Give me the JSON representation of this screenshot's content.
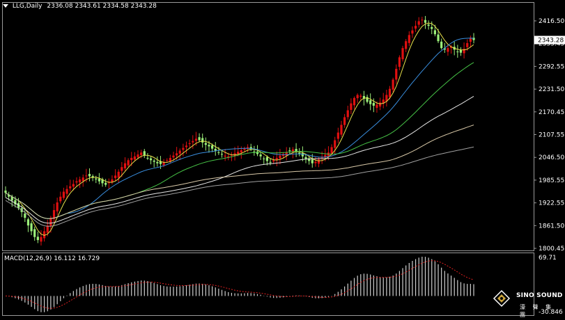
{
  "header": {
    "symbol_tf": "LLG,Daily",
    "ohlc": "2336.08 2343.61 2334.58 2343.28"
  },
  "price_axis": {
    "ticks": [
      "2416.50",
      "2355.45",
      "2292.55",
      "2231.50",
      "2170.45",
      "2107.55",
      "2046.50",
      "1985.55",
      "1922.55",
      "1861.50",
      "1800.45"
    ],
    "current_price": "2343.28"
  },
  "macd": {
    "label": "MACD(12,26,9) 16.112 16.729",
    "axis_top": "69.71",
    "axis_bottom": "-30.846"
  },
  "logo": {
    "line1": "SINO SOUND",
    "line2": "濠 聲 集 團"
  },
  "colors": {
    "background": "#000000",
    "bull": "#e01010",
    "bear": "#9cf07a",
    "ma_yellow": "#e8e04a",
    "ma_blue": "#3a8fe0",
    "ma_green": "#46c246",
    "ma_white": "#e6e6e6",
    "ma_tan": "#d9c9a8",
    "ma_grey": "#a0a0a0",
    "macd_hist": "#d0d0d0",
    "macd_signal": "#e02020"
  },
  "chart_data": {
    "type": "candlestick",
    "ylim": [
      1795,
      2440
    ],
    "closes": [
      1945,
      1935,
      1925,
      1915,
      1905,
      1895,
      1880,
      1860,
      1845,
      1830,
      1822,
      1830,
      1845,
      1860,
      1880,
      1900,
      1920,
      1935,
      1948,
      1955,
      1962,
      1968,
      1975,
      1980,
      1985,
      1990,
      1988,
      1984,
      1980,
      1975,
      1970,
      1966,
      1972,
      1980,
      1990,
      2000,
      2012,
      2022,
      2030,
      2036,
      2040,
      2045,
      2050,
      2042,
      2036,
      2030,
      2026,
      2022,
      2020,
      2024,
      2030,
      2036,
      2042,
      2048,
      2055,
      2062,
      2068,
      2074,
      2080,
      2086,
      2082,
      2076,
      2070,
      2066,
      2060,
      2055,
      2050,
      2045,
      2042,
      2040,
      2044,
      2048,
      2052,
      2056,
      2060,
      2064,
      2058,
      2052,
      2046,
      2040,
      2034,
      2028,
      2024,
      2030,
      2036,
      2042,
      2046,
      2050,
      2054,
      2058,
      2052,
      2046,
      2040,
      2034,
      2028,
      2022,
      2026,
      2032,
      2038,
      2044,
      2050,
      2064,
      2082,
      2102,
      2122,
      2142,
      2160,
      2178,
      2192,
      2200,
      2198,
      2190,
      2182,
      2176,
      2172,
      2175,
      2180,
      2188,
      2200,
      2216,
      2240,
      2268,
      2298,
      2322,
      2340,
      2356,
      2368,
      2380,
      2392,
      2396,
      2388,
      2380,
      2372,
      2358,
      2340,
      2322,
      2318,
      2322,
      2326,
      2318,
      2312,
      2310,
      2320,
      2335,
      2348,
      2343
    ]
  }
}
